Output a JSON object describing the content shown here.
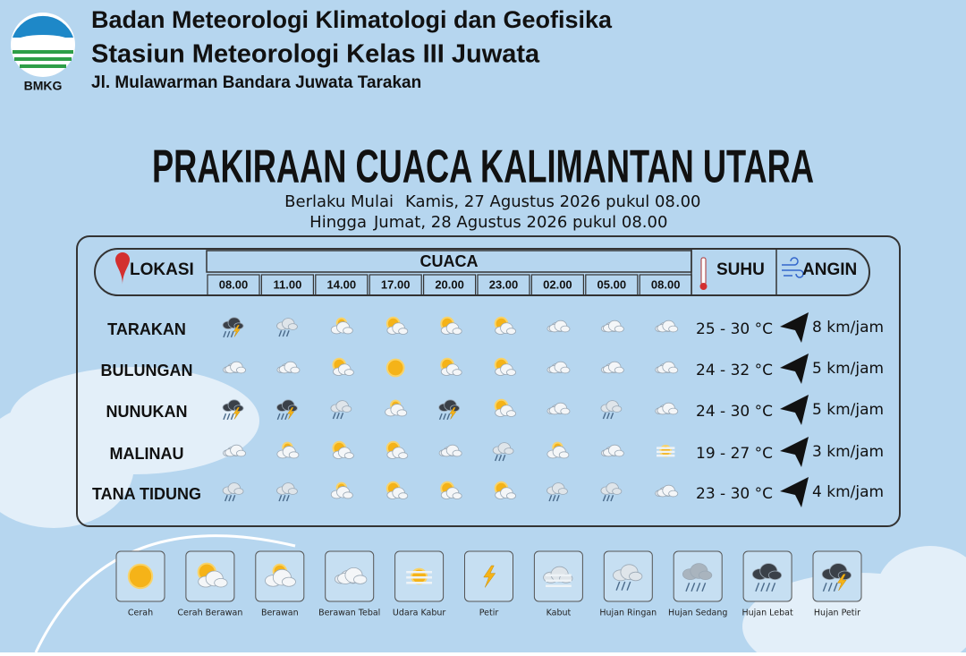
{
  "header": {
    "logo_text": "BMKG",
    "line1": "Badan Meteorologi Klimatologi dan Geofisika",
    "line2": "Stasiun Meteorologi Kelas III Juwata",
    "line3": "Jl. Mulawarman Bandara Juwata Tarakan"
  },
  "title": "PRAKIRAAN CUACA KALIMANTAN UTARA",
  "validity": {
    "from_label": "Berlaku Mulai",
    "from": "Kamis, 27 Agustus 2026 pukul 08.00",
    "until_label": "Hingga",
    "until": "Jumat, 28 Agustus 2026 pukul 08.00"
  },
  "table": {
    "headers": {
      "location": "LOKASI",
      "weather": "CUACA",
      "temperature": "SUHU",
      "wind": "ANGIN"
    },
    "times": [
      "08.00",
      "11.00",
      "14.00",
      "17.00",
      "20.00",
      "23.00",
      "02.00",
      "05.00",
      "08.00"
    ],
    "rows": [
      {
        "location": "TARAKAN",
        "weather": [
          "Hujan Petir",
          "Hujan Ringan",
          "Berawan",
          "Cerah Berawan",
          "Cerah Berawan",
          "Cerah Berawan",
          "Berawan Tebal",
          "Berawan Tebal",
          "Berawan Tebal"
        ],
        "temperature": "25 - 30 °C",
        "wind": "8 km/jam"
      },
      {
        "location": "BULUNGAN",
        "weather": [
          "Berawan Tebal",
          "Berawan Tebal",
          "Cerah Berawan",
          "Cerah",
          "Cerah Berawan",
          "Cerah Berawan",
          "Berawan Tebal",
          "Berawan Tebal",
          "Berawan Tebal"
        ],
        "temperature": "24 - 32 °C",
        "wind": "5 km/jam"
      },
      {
        "location": "NUNUKAN",
        "weather": [
          "Hujan Petir",
          "Hujan Petir",
          "Hujan Ringan",
          "Berawan",
          "Hujan Petir",
          "Cerah Berawan",
          "Berawan Tebal",
          "Hujan Ringan",
          "Berawan Tebal"
        ],
        "temperature": "24 - 30 °C",
        "wind": "5 km/jam"
      },
      {
        "location": "MALINAU",
        "weather": [
          "Berawan Tebal",
          "Berawan",
          "Cerah Berawan",
          "Cerah Berawan",
          "Berawan Tebal",
          "Hujan Ringan",
          "Berawan",
          "Berawan Tebal",
          "Udara Kabur"
        ],
        "temperature": "19 - 27 °C",
        "wind": "3 km/jam"
      },
      {
        "location": "TANA TIDUNG",
        "weather": [
          "Hujan Ringan",
          "Hujan Ringan",
          "Berawan",
          "Cerah Berawan",
          "Cerah Berawan",
          "Cerah Berawan",
          "Hujan Ringan",
          "Hujan Ringan",
          "Berawan Tebal"
        ],
        "temperature": "23 - 30 °C",
        "wind": "4 km/jam"
      }
    ]
  },
  "legend": [
    "Cerah",
    "Cerah Berawan",
    "Berawan",
    "Berawan Tebal",
    "Udara Kabur",
    "Petir",
    "Kabut",
    "Hujan Ringan",
    "Hujan Sedang",
    "Hujan Lebat",
    "Hujan Petir"
  ]
}
